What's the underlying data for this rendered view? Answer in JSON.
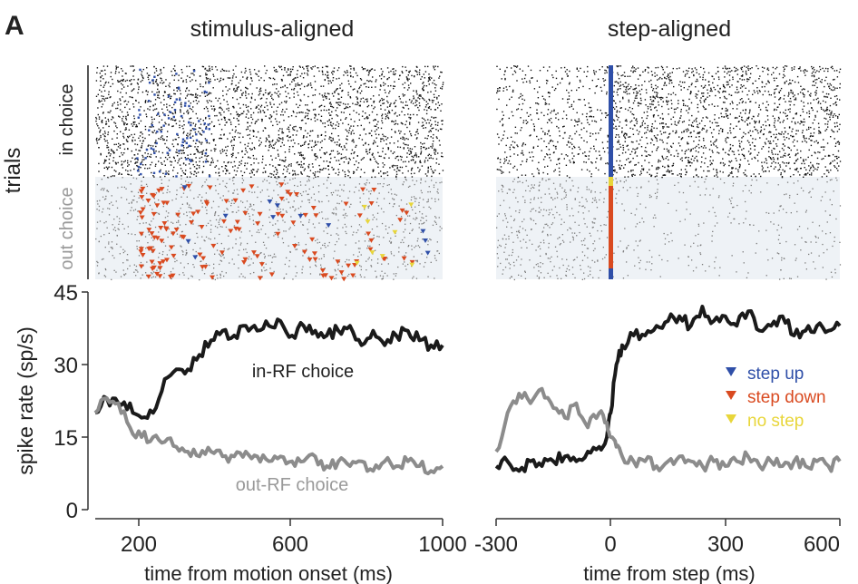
{
  "figure": {
    "panel_label": "A",
    "left_title": "stimulus-aligned",
    "right_title": "step-aligned"
  },
  "raster": {
    "ylabel": "trials",
    "in_choice_label": "in choice",
    "out_choice_label": "out choice"
  },
  "colors": {
    "in_rf": "#1a1a1a",
    "out_rf": "#8c8c8c",
    "step_up": "#2f4fa8",
    "step_down": "#d94a20",
    "no_step": "#e8d63a",
    "out_band": "#eef2f6"
  },
  "legend": {
    "step_up": "step up",
    "step_down": "step down",
    "no_step": "no step"
  },
  "chart_data": [
    {
      "type": "line",
      "panel": "stimulus-aligned",
      "xlabel": "time from motion onset (ms)",
      "ylabel": "spike rate (sp/s)",
      "xlim": [
        100,
        1000
      ],
      "ylim": [
        0,
        45
      ],
      "xticks": [
        "200",
        "600",
        "1000"
      ],
      "yticks": [
        "0",
        "15",
        "30",
        "45"
      ],
      "series": [
        {
          "name": "in-RF choice",
          "color": "#1a1a1a",
          "x": [
            100,
            130,
            160,
            190,
            220,
            250,
            280,
            310,
            340,
            370,
            400,
            430,
            460,
            490,
            520,
            550,
            580,
            610,
            640,
            670,
            700,
            730,
            760,
            790,
            820,
            850,
            880,
            910,
            940,
            970,
            1000
          ],
          "y": [
            20,
            23,
            22,
            22,
            19,
            20,
            27,
            29,
            29,
            32,
            35,
            37,
            36,
            38,
            37,
            38,
            39,
            36,
            38,
            37,
            36,
            37,
            38,
            34,
            37,
            34,
            36,
            37,
            35,
            34,
            34
          ]
        },
        {
          "name": "out-RF choice",
          "color": "#8c8c8c",
          "x": [
            100,
            130,
            160,
            190,
            220,
            250,
            280,
            310,
            340,
            370,
            400,
            430,
            460,
            490,
            520,
            550,
            580,
            610,
            640,
            670,
            700,
            730,
            760,
            790,
            820,
            850,
            880,
            910,
            940,
            970,
            1000
          ],
          "y": [
            20,
            23,
            22,
            17,
            15,
            15,
            14,
            13,
            12,
            11,
            12,
            11,
            11,
            12,
            11,
            10,
            11,
            10,
            10,
            11,
            9,
            10,
            9,
            10,
            8,
            10,
            9,
            10,
            9,
            8,
            9
          ]
        }
      ]
    },
    {
      "type": "line",
      "panel": "step-aligned",
      "xlabel": "time from step (ms)",
      "ylabel": "",
      "xlim": [
        -300,
        600
      ],
      "ylim": [
        0,
        45
      ],
      "xticks": [
        "-300",
        "0",
        "300",
        "600"
      ],
      "series": [
        {
          "name": "",
          "color": "#1a1a1a",
          "x": [
            -300,
            -270,
            -240,
            -210,
            -180,
            -150,
            -120,
            -90,
            -60,
            -30,
            -10,
            0,
            15,
            30,
            60,
            90,
            120,
            150,
            180,
            210,
            240,
            270,
            300,
            330,
            360,
            390,
            420,
            450,
            480,
            510,
            540,
            570,
            600
          ],
          "y": [
            9,
            10,
            8,
            10,
            9,
            10,
            11,
            10,
            12,
            13,
            15,
            20,
            30,
            34,
            36,
            36,
            38,
            39,
            40,
            38,
            42,
            39,
            40,
            38,
            41,
            37,
            38,
            40,
            36,
            37,
            38,
            37,
            38
          ]
        },
        {
          "name": "",
          "color": "#8c8c8c",
          "x": [
            -300,
            -270,
            -240,
            -210,
            -180,
            -150,
            -120,
            -90,
            -60,
            -30,
            -10,
            0,
            15,
            30,
            60,
            90,
            120,
            150,
            180,
            210,
            240,
            270,
            300,
            330,
            360,
            390,
            420,
            450,
            480,
            510,
            540,
            570,
            600
          ],
          "y": [
            12,
            20,
            24,
            22,
            25,
            21,
            19,
            22,
            17,
            20,
            18,
            15,
            13,
            11,
            10,
            10,
            9,
            10,
            11,
            10,
            9,
            10,
            9,
            10,
            11,
            9,
            10,
            9,
            10,
            9,
            10,
            9,
            10
          ]
        }
      ]
    }
  ],
  "curve_labels": {
    "in_rf": "in-RF choice",
    "out_rf": "out-RF choice"
  }
}
